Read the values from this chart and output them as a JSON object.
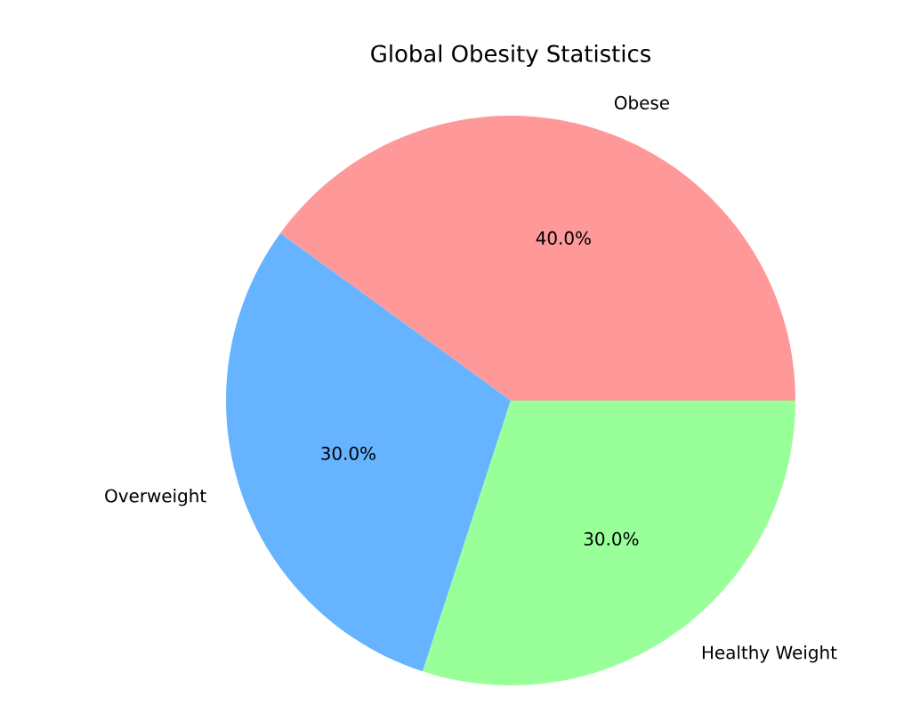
{
  "chart_data": {
    "type": "pie",
    "title": "Global Obesity Statistics",
    "categories": [
      "Obese",
      "Overweight",
      "Healthy Weight"
    ],
    "values": [
      40,
      30,
      30
    ],
    "colors": [
      "#ff9999",
      "#66b3ff",
      "#99ff99"
    ],
    "value_labels": [
      "40.0%",
      "30.0%",
      "30.0%"
    ]
  }
}
